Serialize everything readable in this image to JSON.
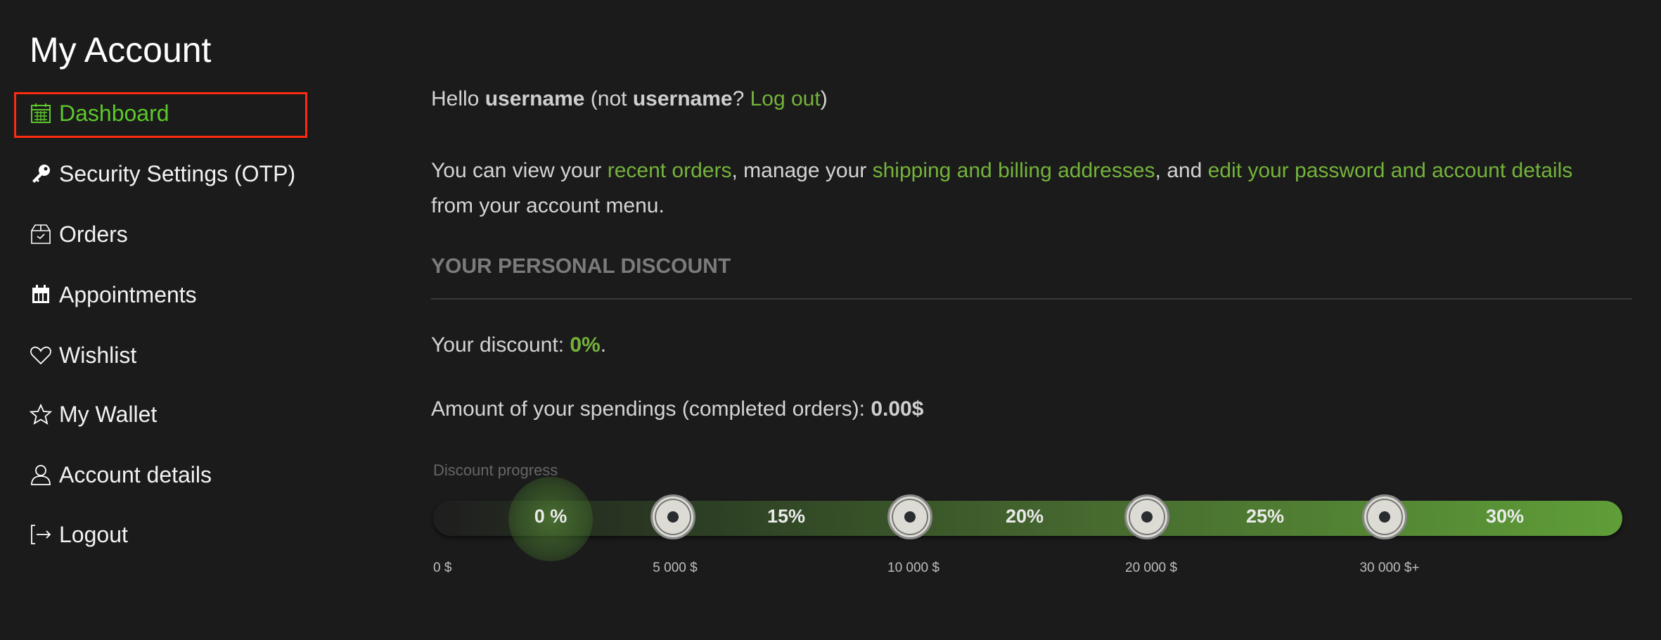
{
  "title": "My Account",
  "sidebar": {
    "active_outline_color": "#ff2a0f",
    "items": [
      {
        "label": "Dashboard",
        "icon": "calendar-grid-icon",
        "active": true
      },
      {
        "label": "Security Settings (OTP)",
        "icon": "key-icon"
      },
      {
        "label": "Orders",
        "icon": "box-check-icon"
      },
      {
        "label": "Appointments",
        "icon": "calendar-icon"
      },
      {
        "label": "Wishlist",
        "icon": "heart-icon"
      },
      {
        "label": "My Wallet",
        "icon": "star-icon"
      },
      {
        "label": "Account details",
        "icon": "user-icon"
      },
      {
        "label": "Logout",
        "icon": "logout-icon"
      }
    ]
  },
  "greeting": {
    "hello": "Hello ",
    "username": "username",
    "not_prefix": " (not ",
    "username2": "username",
    "q": "? ",
    "logout_link": "Log out",
    "close": ")"
  },
  "intro": {
    "t1": "You can view your ",
    "link1": "recent orders",
    "t2": ", manage your ",
    "link2": "shipping and billing addresses",
    "t3": ", and ",
    "link3": "edit your password and account details",
    "t4": "from your account menu."
  },
  "discount": {
    "heading": "YOUR PERSONAL DISCOUNT",
    "your_discount_label": "Your discount: ",
    "your_discount_value": "0%",
    "spend_label": "Amount of your spendings (completed orders): ",
    "spend_value": "0.00$",
    "progress_label": "Discount progress",
    "current_level": "0 %",
    "levels": [
      "15%",
      "20%",
      "25%",
      "30%"
    ],
    "thresholds": [
      "0 $",
      "5 000 $",
      "10 000 $",
      "20 000 $",
      "30 000 $+"
    ],
    "accent_color": "#74b33a"
  }
}
